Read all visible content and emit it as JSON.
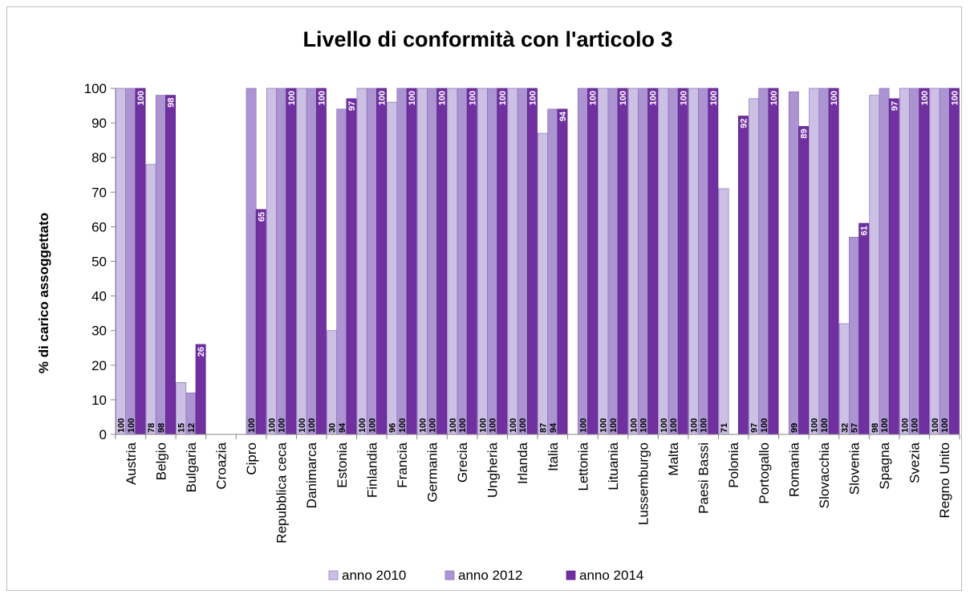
{
  "chart_data": {
    "type": "bar",
    "title": "Livello di conformità con l'articolo 3",
    "ylabel": "% di carico assoggettato",
    "xlabel": "",
    "ylim": [
      0,
      100
    ],
    "yticks": [
      0,
      10,
      20,
      30,
      40,
      50,
      60,
      70,
      80,
      90,
      100
    ],
    "grid": false,
    "legend_position": "bottom",
    "categories": [
      "Austria",
      "Belgio",
      "Bulgaria",
      "Croazia",
      "Cipro",
      "Repubblica ceca",
      "Danimarca",
      "Estonia",
      "Finlandia",
      "Francia",
      "Germania",
      "Grecia",
      "Ungheria",
      "Irlanda",
      "Italia",
      "Lettonia",
      "Lituania",
      "Lussemburgo",
      "Malta",
      "Paesi Bassi",
      "Polonia",
      "Portogallo",
      "Romania",
      "Slovacchia",
      "Slovenia",
      "Spagna",
      "Svezia",
      "Regno Unito"
    ],
    "series": [
      {
        "name": "anno 2010",
        "color": "#ccc0e4",
        "values": [
          100,
          78,
          15,
          null,
          null,
          100,
          100,
          30,
          100,
          96,
          100,
          100,
          100,
          100,
          87,
          null,
          100,
          100,
          100,
          100,
          71,
          97,
          null,
          100,
          32,
          98,
          100,
          100
        ],
        "labels": [
          "100",
          "78",
          "15",
          "",
          "",
          "100",
          "100",
          "30",
          "100",
          "96",
          "100",
          "100",
          "100",
          "100",
          "87",
          "",
          "100",
          "100",
          "100",
          "100",
          "71",
          "97",
          "",
          "100",
          "32",
          "98",
          "100",
          "100"
        ]
      },
      {
        "name": "anno 2012",
        "color": "#ac94d2",
        "values": [
          100,
          98,
          12,
          null,
          100,
          100,
          100,
          94,
          100,
          100,
          100,
          100,
          100,
          100,
          94,
          100,
          100,
          100,
          100,
          100,
          null,
          100,
          99,
          100,
          57,
          100,
          100,
          100
        ],
        "labels": [
          "100",
          "98",
          "12",
          "",
          "100",
          "100",
          "100",
          "94",
          "100",
          "100",
          "100",
          "100",
          "100",
          "100",
          "94",
          "100",
          "100",
          "100",
          "100",
          "100",
          "",
          "100",
          "99",
          "100",
          "57",
          "100",
          "100",
          "100"
        ]
      },
      {
        "name": "anno 2014",
        "color": "#7030a0",
        "values": [
          100,
          98,
          26,
          null,
          65,
          100,
          100,
          97,
          100,
          100,
          100,
          100,
          100,
          100,
          94,
          100,
          100,
          100,
          100,
          100,
          92,
          100,
          89,
          100,
          61,
          97,
          100,
          100
        ],
        "labels": [
          "100",
          "98",
          "26",
          "",
          "65",
          "100",
          "100",
          "97",
          "100",
          "100",
          "100",
          "100",
          "100",
          "100",
          "94",
          "100",
          "100",
          "100",
          "100",
          "100",
          "92",
          "100",
          "89",
          "100",
          "61",
          "97",
          "100",
          "100"
        ]
      }
    ]
  }
}
